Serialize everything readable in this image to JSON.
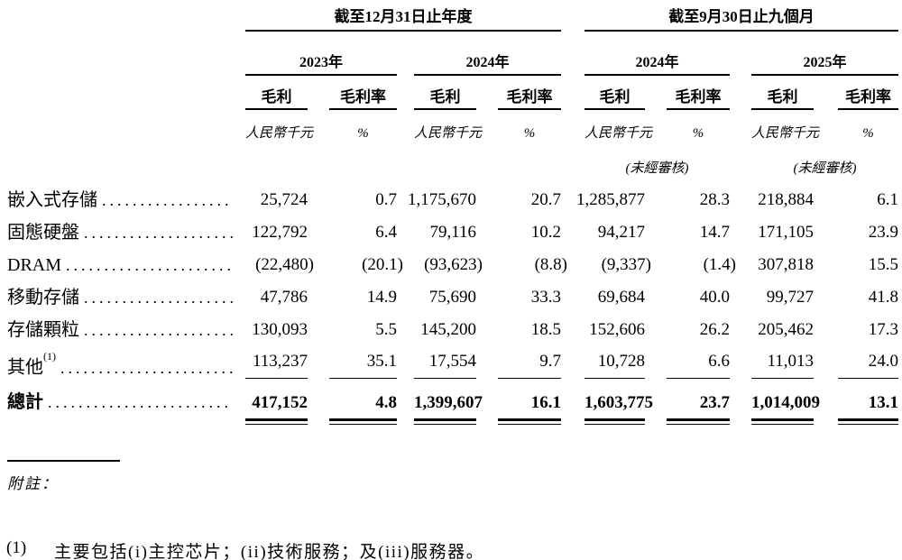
{
  "page": {
    "background": "#ffffff",
    "text_color": "#000000"
  },
  "table": {
    "groups": [
      {
        "title": "截至12月31日止年度"
      },
      {
        "title": "截至9月30日止九個月"
      }
    ],
    "periods": [
      {
        "year": "2023年",
        "unaudited": ""
      },
      {
        "year": "2024年",
        "unaudited": ""
      },
      {
        "year": "2024年",
        "unaudited": "(未經審核)"
      },
      {
        "year": "2025年",
        "unaudited": "(未經審核)"
      }
    ],
    "col_headers": {
      "profit": "毛利",
      "margin": "毛利率"
    },
    "units": {
      "currency": "人民幣千元",
      "percent": "%"
    },
    "rows": [
      {
        "label": "嵌入式存儲",
        "sup": "",
        "values": [
          "25,724",
          "0.7",
          "1,175,670",
          "20.7",
          "1,285,877",
          "28.3",
          "218,884",
          "6.1"
        ]
      },
      {
        "label": "固態硬盤",
        "sup": "",
        "values": [
          "122,792",
          "6.4",
          "79,116",
          "10.2",
          "94,217",
          "14.7",
          "171,105",
          "23.9"
        ]
      },
      {
        "label": "DRAM",
        "sup": "",
        "values": [
          "(22,480)",
          "(20.1)",
          "(93,623)",
          "(8.8)",
          "(9,337)",
          "(1.4)",
          "307,818",
          "15.5"
        ]
      },
      {
        "label": "移動存儲",
        "sup": "",
        "values": [
          "47,786",
          "14.9",
          "75,690",
          "33.3",
          "69,684",
          "40.0",
          "99,727",
          "41.8"
        ]
      },
      {
        "label": "存儲顆粒",
        "sup": "",
        "values": [
          "130,093",
          "5.5",
          "145,200",
          "18.5",
          "152,606",
          "26.2",
          "205,462",
          "17.3"
        ]
      },
      {
        "label": "其他",
        "sup": "(1)",
        "values": [
          "113,237",
          "35.1",
          "17,554",
          "9.7",
          "10,728",
          "6.6",
          "11,013",
          "24.0"
        ]
      }
    ],
    "total": {
      "label": "總計",
      "values": [
        "417,152",
        "4.8",
        "1,399,607",
        "16.1",
        "1,603,775",
        "23.7",
        "1,014,009",
        "13.1"
      ]
    }
  },
  "footnote": {
    "label": "附註：",
    "items": [
      {
        "marker": "(1)",
        "text": "主要包括(i)主控芯片；(ii)技術服務；及(iii)服務器。"
      }
    ]
  }
}
